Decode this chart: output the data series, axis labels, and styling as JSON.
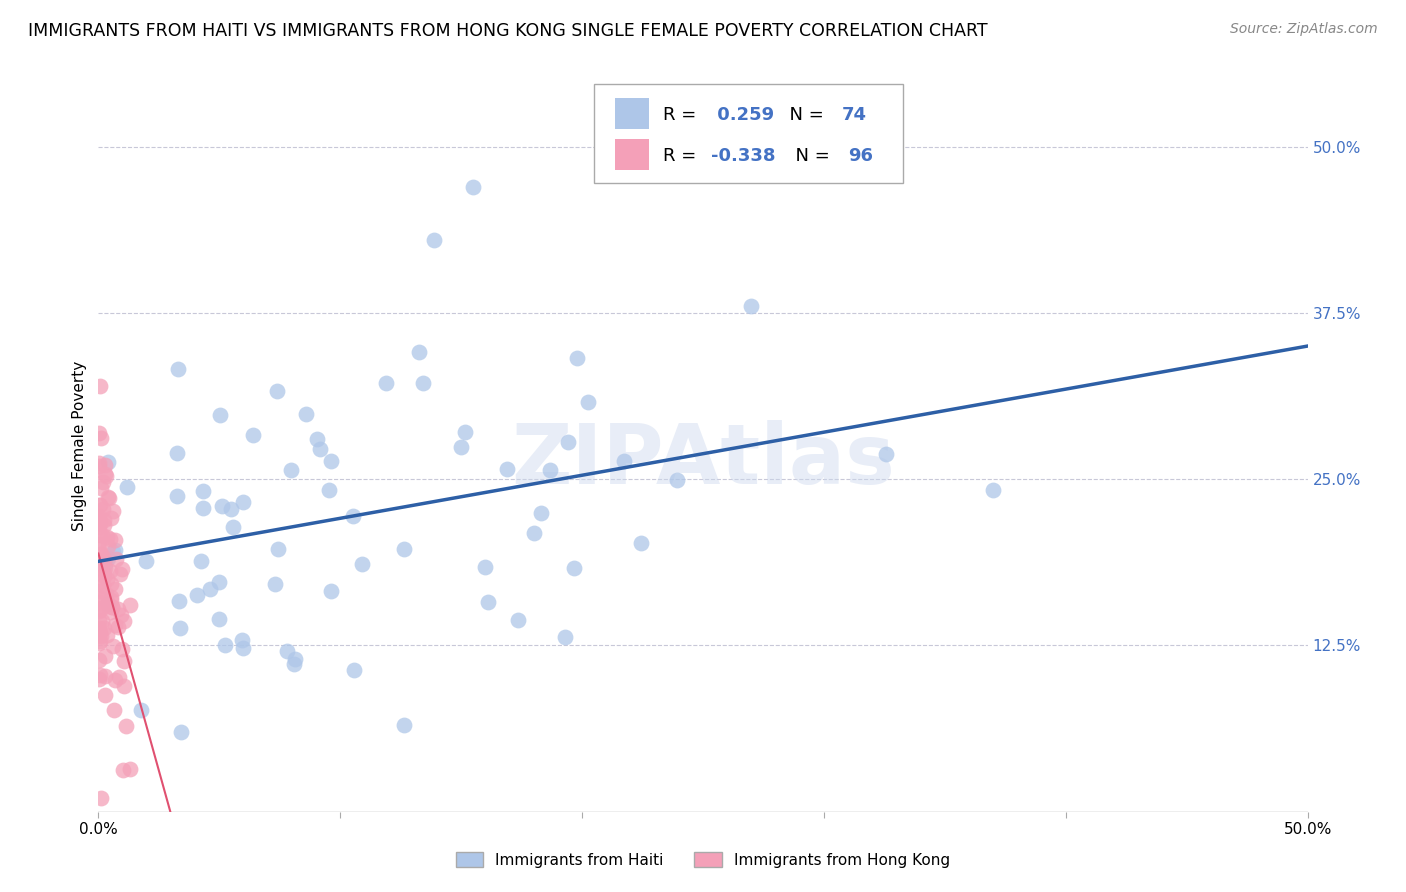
{
  "title": "IMMIGRANTS FROM HAITI VS IMMIGRANTS FROM HONG KONG SINGLE FEMALE POVERTY CORRELATION CHART",
  "source": "Source: ZipAtlas.com",
  "ylabel": "Single Female Poverty",
  "xlim": [
    0.0,
    0.5
  ],
  "ylim": [
    0.0,
    0.55
  ],
  "haiti_R": 0.259,
  "haiti_N": 74,
  "hongkong_R": -0.338,
  "hongkong_N": 96,
  "haiti_color": "#aec6e8",
  "hongkong_color": "#f4a0b8",
  "haiti_line_color": "#2d5fa6",
  "hongkong_line_color": "#e05070",
  "watermark": "ZIPAtlas",
  "background_color": "#ffffff",
  "grid_color": "#c8c8d8",
  "title_fontsize": 12.5,
  "axis_label_color": "#4472c4",
  "source_color": "#888888"
}
